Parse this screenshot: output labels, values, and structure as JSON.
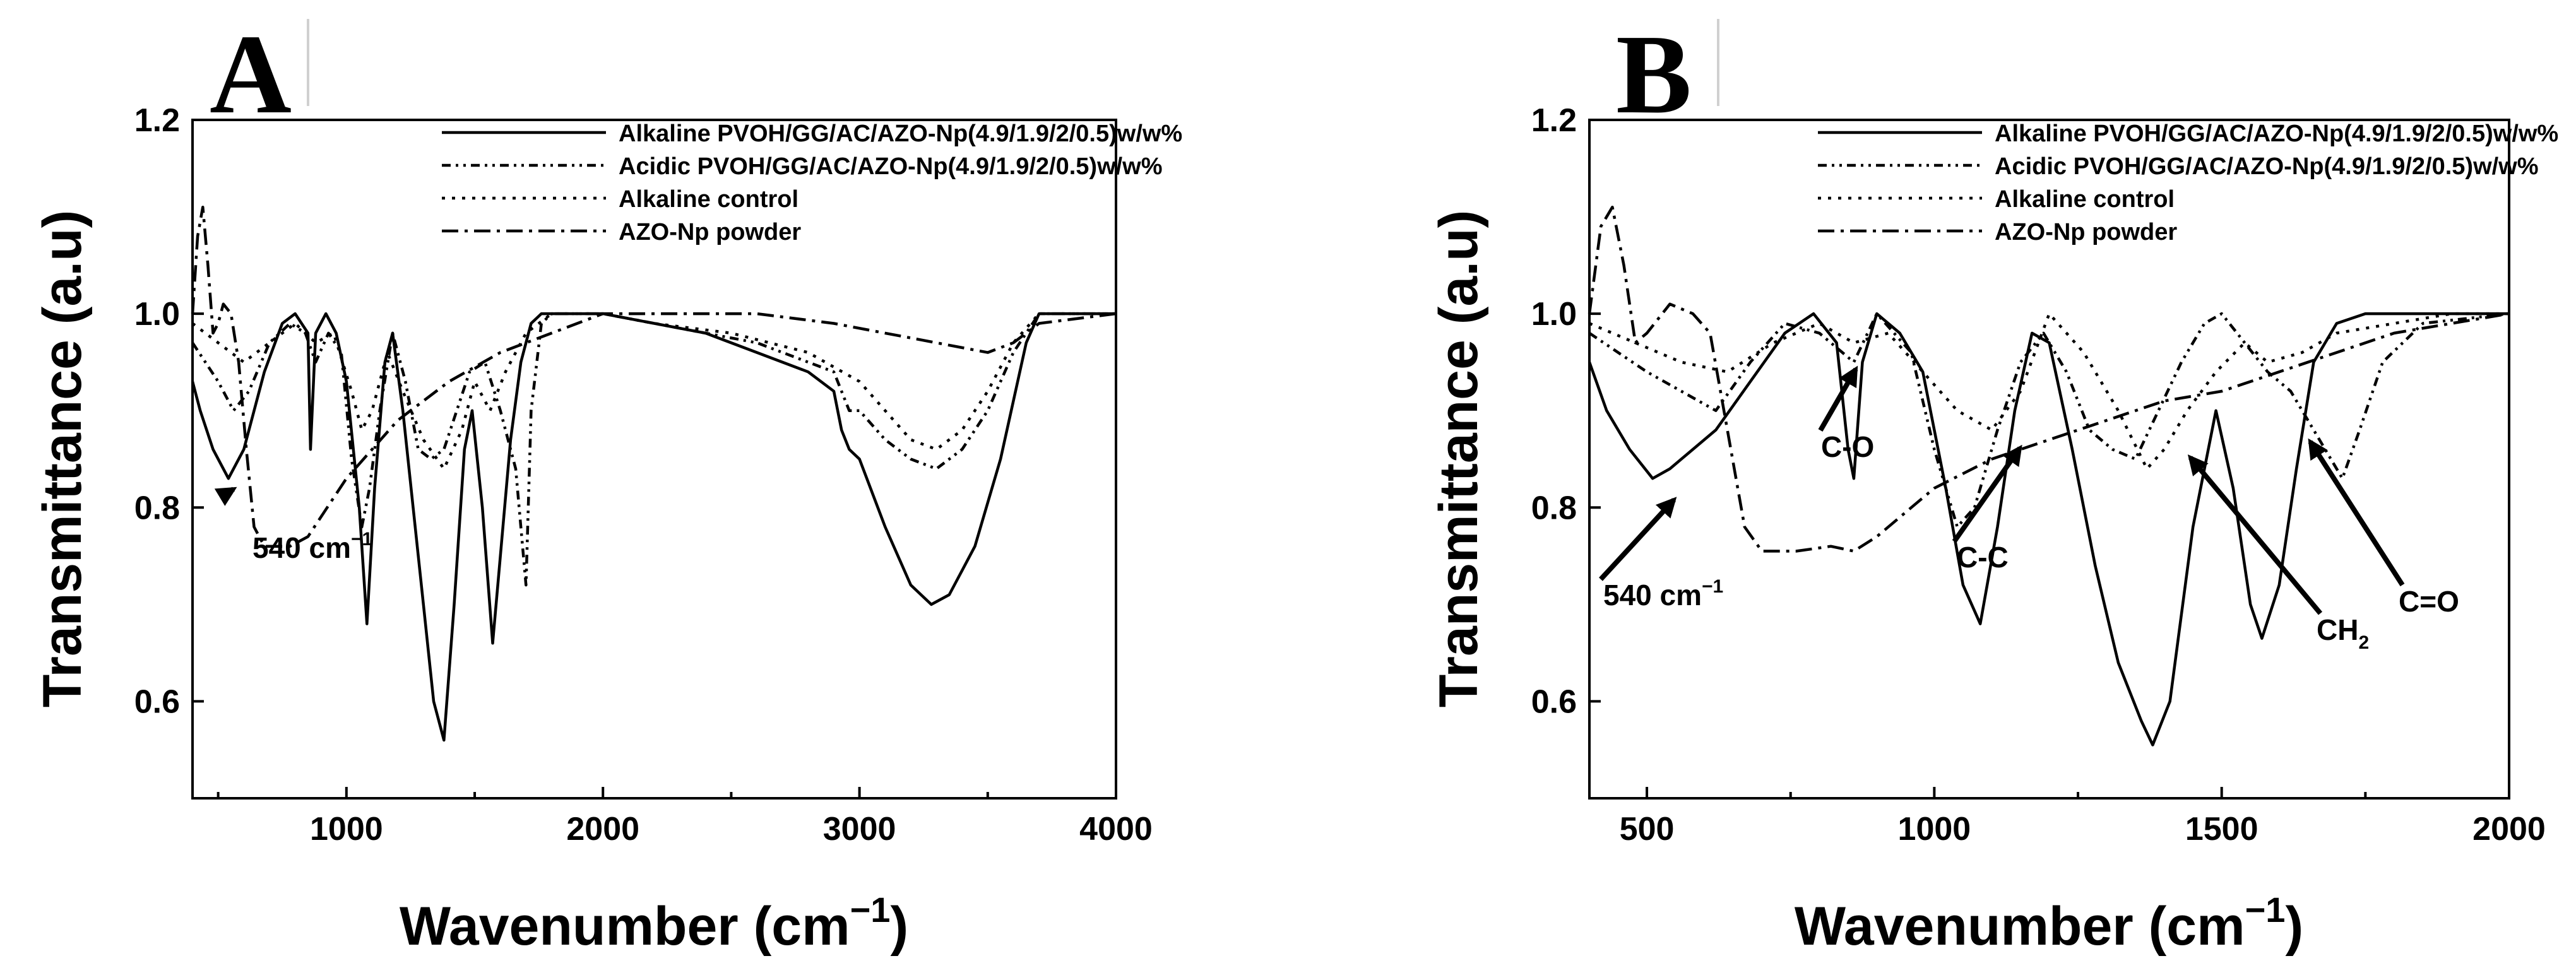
{
  "chart_data": [
    {
      "type": "line",
      "panel": "A",
      "xlabel": "Wavenumber (cm",
      "xlabel_sup": "−1",
      "xlabel_close": ")",
      "ylabel": "Transmittance (a.u)",
      "xlim": [
        400,
        4000
      ],
      "ylim": [
        0.5,
        1.2
      ],
      "xticks": [
        1000,
        2000,
        3000,
        4000
      ],
      "yticks": [
        0.6,
        0.8,
        1.0,
        1.2
      ],
      "ytick_labels": [
        "0.6",
        "0.8",
        "1.0",
        "1.2"
      ],
      "legend_position": "top-right",
      "series": [
        {
          "name": "Alkaline PVOH/GG/AC/AZO-Np(4.9/1.9/2/0.5)w/w%",
          "style": "solid",
          "x": [
            400,
            430,
            480,
            540,
            600,
            680,
            750,
            800,
            850,
            860,
            880,
            920,
            960,
            1000,
            1050,
            1080,
            1110,
            1150,
            1180,
            1220,
            1260,
            1300,
            1340,
            1380,
            1420,
            1460,
            1490,
            1530,
            1570,
            1600,
            1640,
            1680,
            1720,
            1760,
            1800,
            2000,
            2200,
            2400,
            2600,
            2800,
            2900,
            2930,
            2960,
            3000,
            3100,
            3200,
            3280,
            3350,
            3450,
            3550,
            3650,
            3700,
            3800,
            4000
          ],
          "y": [
            0.93,
            0.9,
            0.86,
            0.83,
            0.86,
            0.94,
            0.99,
            1.0,
            0.98,
            0.86,
            0.98,
            1.0,
            0.98,
            0.93,
            0.8,
            0.68,
            0.82,
            0.95,
            0.98,
            0.9,
            0.8,
            0.7,
            0.6,
            0.56,
            0.7,
            0.86,
            0.9,
            0.8,
            0.66,
            0.75,
            0.87,
            0.95,
            0.99,
            1.0,
            1.0,
            1.0,
            0.99,
            0.98,
            0.96,
            0.94,
            0.92,
            0.88,
            0.86,
            0.85,
            0.78,
            0.72,
            0.7,
            0.71,
            0.76,
            0.85,
            0.97,
            1.0,
            1.0,
            1.0
          ]
        },
        {
          "name": "Acidic PVOH/GG/AC/AZO-Np(4.9/1.9/2/0.5)w/w%",
          "style": "dash-dot-dot",
          "x": [
            400,
            450,
            500,
            560,
            620,
            700,
            780,
            840,
            880,
            930,
            980,
            1020,
            1060,
            1090,
            1130,
            1180,
            1230,
            1280,
            1330,
            1380,
            1430,
            1480,
            1540,
            1600,
            1660,
            1700,
            1720,
            1760,
            1800,
            2000,
            2200,
            2400,
            2600,
            2800,
            2900,
            2960,
            3000,
            3100,
            3200,
            3300,
            3400,
            3500,
            3600,
            3700,
            4000
          ],
          "y": [
            0.97,
            0.95,
            0.93,
            0.9,
            0.92,
            0.97,
            0.99,
            0.98,
            0.95,
            0.98,
            0.96,
            0.85,
            0.78,
            0.82,
            0.9,
            0.98,
            0.93,
            0.86,
            0.85,
            0.86,
            0.9,
            0.94,
            0.95,
            0.9,
            0.84,
            0.72,
            0.9,
            0.99,
            1.0,
            1.0,
            0.99,
            0.98,
            0.97,
            0.95,
            0.94,
            0.9,
            0.9,
            0.87,
            0.85,
            0.84,
            0.86,
            0.9,
            0.96,
            1.0,
            1.0
          ]
        },
        {
          "name": "Alkaline control",
          "style": "dotted",
          "x": [
            400,
            500,
            600,
            700,
            800,
            880,
            950,
            1020,
            1060,
            1100,
            1160,
            1220,
            1300,
            1380,
            1450,
            1500,
            1560,
            1620,
            1700,
            1800,
            2000,
            2200,
            2500,
            2800,
            3000,
            3100,
            3200,
            3300,
            3400,
            3500,
            3600,
            3700,
            4000
          ],
          "y": [
            0.99,
            0.97,
            0.95,
            0.97,
            0.99,
            0.97,
            0.98,
            0.92,
            0.88,
            0.9,
            0.96,
            0.92,
            0.87,
            0.84,
            0.88,
            0.93,
            0.9,
            0.94,
            0.98,
            1.0,
            1.0,
            0.99,
            0.98,
            0.96,
            0.93,
            0.9,
            0.87,
            0.86,
            0.88,
            0.92,
            0.97,
            1.0,
            1.0
          ]
        },
        {
          "name": "AZO-Np powder",
          "style": "dash-dot",
          "x": [
            400,
            420,
            440,
            460,
            480,
            500,
            520,
            550,
            580,
            610,
            640,
            680,
            720,
            780,
            850,
            900,
            950,
            1000,
            1100,
            1200,
            1400,
            1600,
            1800,
            2000,
            2300,
            2600,
            2900,
            3100,
            3300,
            3500,
            3600,
            3700,
            4000
          ],
          "y": [
            1.0,
            1.08,
            1.11,
            1.05,
            0.98,
            0.99,
            1.01,
            1.0,
            0.95,
            0.86,
            0.78,
            0.76,
            0.76,
            0.76,
            0.77,
            0.79,
            0.81,
            0.83,
            0.86,
            0.89,
            0.93,
            0.96,
            0.98,
            1.0,
            1.0,
            1.0,
            0.99,
            0.98,
            0.97,
            0.96,
            0.97,
            0.99,
            1.0
          ]
        }
      ],
      "annotations": [
        {
          "text": "540 cm",
          "sup": "−1",
          "target_x": 540,
          "target_y": 0.84
        }
      ]
    },
    {
      "type": "line",
      "panel": "B",
      "xlabel": "Wavenumber (cm",
      "xlabel_sup": "−1",
      "xlabel_close": ")",
      "ylabel": "Transmittance (a.u)",
      "xlim": [
        400,
        2000
      ],
      "ylim": [
        0.5,
        1.2
      ],
      "xticks": [
        500,
        1000,
        1500,
        2000
      ],
      "yticks": [
        0.6,
        0.8,
        1.0,
        1.2
      ],
      "ytick_labels": [
        "0.6",
        "0.8",
        "1.0",
        "1.2"
      ],
      "legend_position": "top-right",
      "series": [
        {
          "name": "Alkaline PVOH/GG/AC/AZO-Np(4.9/1.9/2/0.5)w/w%",
          "style": "solid",
          "x": [
            400,
            430,
            470,
            510,
            540,
            580,
            620,
            680,
            740,
            790,
            830,
            850,
            860,
            875,
            900,
            940,
            980,
            1020,
            1050,
            1080,
            1110,
            1140,
            1170,
            1200,
            1240,
            1280,
            1320,
            1360,
            1380,
            1410,
            1450,
            1490,
            1520,
            1550,
            1570,
            1600,
            1630,
            1660,
            1700,
            1750,
            1800,
            1900,
            2000
          ],
          "y": [
            0.95,
            0.9,
            0.86,
            0.83,
            0.84,
            0.86,
            0.88,
            0.93,
            0.98,
            1.0,
            0.97,
            0.86,
            0.83,
            0.95,
            1.0,
            0.98,
            0.94,
            0.82,
            0.72,
            0.68,
            0.78,
            0.9,
            0.98,
            0.97,
            0.86,
            0.74,
            0.64,
            0.58,
            0.555,
            0.6,
            0.78,
            0.9,
            0.82,
            0.7,
            0.665,
            0.72,
            0.84,
            0.95,
            0.99,
            1.0,
            1.0,
            1.0,
            1.0
          ]
        },
        {
          "name": "Acidic PVOH/GG/AC/AZO-Np(4.9/1.9/2/0.5)w/w%",
          "style": "dash-dot-dot",
          "x": [
            400,
            450,
            500,
            560,
            620,
            680,
            740,
            800,
            860,
            900,
            960,
            1000,
            1040,
            1070,
            1110,
            1150,
            1190,
            1230,
            1270,
            1310,
            1350,
            1390,
            1430,
            1470,
            1500,
            1540,
            1580,
            1620,
            1660,
            1690,
            1710,
            1740,
            1780,
            1850,
            2000
          ],
          "y": [
            0.98,
            0.96,
            0.94,
            0.92,
            0.9,
            0.95,
            0.99,
            0.98,
            0.95,
            1.0,
            0.96,
            0.86,
            0.78,
            0.8,
            0.88,
            0.95,
            0.98,
            0.94,
            0.88,
            0.86,
            0.85,
            0.9,
            0.95,
            0.99,
            1.0,
            0.97,
            0.94,
            0.92,
            0.88,
            0.85,
            0.83,
            0.88,
            0.95,
            0.99,
            1.0
          ]
        },
        {
          "name": "Alkaline control",
          "style": "dotted",
          "x": [
            400,
            480,
            560,
            640,
            720,
            800,
            860,
            920,
            980,
            1040,
            1100,
            1150,
            1200,
            1260,
            1320,
            1370,
            1400,
            1440,
            1490,
            1540,
            1580,
            1640,
            1700,
            1800,
            1900,
            2000
          ],
          "y": [
            0.99,
            0.97,
            0.95,
            0.94,
            0.97,
            0.99,
            0.97,
            0.98,
            0.94,
            0.9,
            0.88,
            0.92,
            1.0,
            0.96,
            0.9,
            0.84,
            0.86,
            0.9,
            0.94,
            0.97,
            0.95,
            0.96,
            0.98,
            0.99,
            1.0,
            1.0
          ]
        },
        {
          "name": "AZO-Np powder",
          "style": "dash-dot",
          "x": [
            400,
            420,
            440,
            460,
            480,
            500,
            540,
            580,
            610,
            640,
            670,
            700,
            760,
            820,
            860,
            900,
            960,
            1000,
            1100,
            1200,
            1300,
            1400,
            1500,
            1600,
            1700,
            1800,
            1900,
            2000
          ],
          "y": [
            1.0,
            1.09,
            1.11,
            1.05,
            0.97,
            0.98,
            1.01,
            1.0,
            0.98,
            0.88,
            0.78,
            0.755,
            0.755,
            0.76,
            0.755,
            0.77,
            0.8,
            0.82,
            0.85,
            0.87,
            0.89,
            0.91,
            0.92,
            0.94,
            0.96,
            0.98,
            0.99,
            1.0
          ]
        }
      ],
      "annotations": [
        {
          "text": "540 cm",
          "sup": "−1",
          "target_x": 540,
          "target_y": 0.84
        },
        {
          "text": "C-O",
          "target_x": 870,
          "target_y": 0.97
        },
        {
          "text": "C-C",
          "target_x": 1160,
          "target_y": 0.88
        },
        {
          "text": "CH",
          "sub": "2",
          "target_x": 1440,
          "target_y": 0.87
        },
        {
          "text": "C=O",
          "target_x": 1640,
          "target_y": 0.87
        }
      ]
    }
  ]
}
